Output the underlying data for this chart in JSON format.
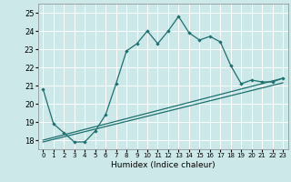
{
  "xlabel": "Humidex (Indice chaleur)",
  "ylabel": "",
  "xlim": [
    -0.5,
    23.5
  ],
  "ylim": [
    17.5,
    25.5
  ],
  "yticks": [
    18,
    19,
    20,
    21,
    22,
    23,
    24,
    25
  ],
  "xticks": [
    0,
    1,
    2,
    3,
    4,
    5,
    6,
    7,
    8,
    9,
    10,
    11,
    12,
    13,
    14,
    15,
    16,
    17,
    18,
    19,
    20,
    21,
    22,
    23
  ],
  "xtick_labels": [
    "0",
    "1",
    "2",
    "3",
    "4",
    "5",
    "6",
    "7",
    "8",
    "9",
    "10",
    "11",
    "12",
    "13",
    "14",
    "15",
    "16",
    "17",
    "18",
    "19",
    "20",
    "21",
    "22",
    "23"
  ],
  "bg_color": "#cde8e8",
  "line_color": "#1e7070",
  "grid_color": "#ffffff",
  "line1_x": [
    0,
    1,
    2,
    3,
    4,
    5,
    6,
    7,
    8,
    9,
    10,
    11,
    12,
    13,
    14,
    15,
    16,
    17,
    18,
    19,
    20,
    21,
    22,
    23
  ],
  "line1_y": [
    20.8,
    18.9,
    18.4,
    17.9,
    17.9,
    18.5,
    19.4,
    21.1,
    22.9,
    23.3,
    24.0,
    23.3,
    24.0,
    24.8,
    23.9,
    23.5,
    23.7,
    23.4,
    22.1,
    21.1,
    21.3,
    21.2,
    21.2,
    21.4
  ],
  "line2_x": [
    0,
    23
  ],
  "line2_y": [
    18.0,
    21.4
  ],
  "line3_x": [
    0,
    23
  ],
  "line3_y": [
    17.9,
    21.15
  ]
}
